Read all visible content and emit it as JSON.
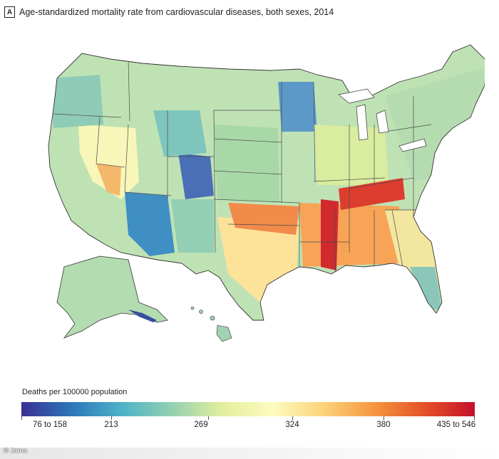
{
  "header": {
    "panel_label": "A",
    "title": "Age-standardized mortality rate from cardiovascular diseases, both sexes, 2014"
  },
  "legend": {
    "title": "Deaths per 100000 population",
    "ticks": [
      "76 to 158",
      "213",
      "269",
      "324",
      "380",
      "435 to 546"
    ],
    "colors": [
      "#3b2f93",
      "#2c77b8",
      "#4db3c9",
      "#95d0b0",
      "#e3ef9d",
      "#fdfbc0",
      "#fbd37a",
      "#f5963f",
      "#e45127",
      "#c3112b"
    ]
  },
  "credit": "© Jama"
}
